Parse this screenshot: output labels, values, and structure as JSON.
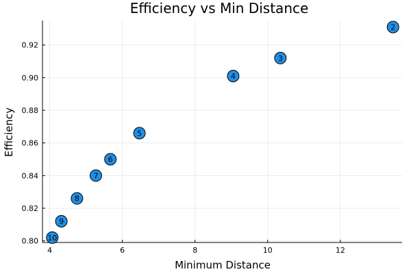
{
  "chart_data": {
    "type": "scatter",
    "title": "Efficiency vs Min Distance",
    "xlabel": "Minimum Distance",
    "ylabel": "Efficiency",
    "xlim": [
      3.8,
      13.7
    ],
    "ylim": [
      0.799,
      0.935
    ],
    "xticks": [
      4,
      6,
      8,
      10,
      12
    ],
    "yticks": [
      0.8,
      0.82,
      0.84,
      0.86,
      0.88,
      0.9,
      0.92
    ],
    "grid": true,
    "marker_color": "#1f8fe6",
    "points": [
      {
        "label": "2",
        "x": 13.45,
        "y": 0.931
      },
      {
        "label": "3",
        "x": 10.35,
        "y": 0.912
      },
      {
        "label": "4",
        "x": 9.05,
        "y": 0.901
      },
      {
        "label": "5",
        "x": 6.47,
        "y": 0.866
      },
      {
        "label": "6",
        "x": 5.67,
        "y": 0.85
      },
      {
        "label": "7",
        "x": 5.27,
        "y": 0.84
      },
      {
        "label": "8",
        "x": 4.75,
        "y": 0.826
      },
      {
        "label": "9",
        "x": 4.32,
        "y": 0.812
      },
      {
        "label": "10",
        "x": 4.07,
        "y": 0.802
      }
    ]
  }
}
